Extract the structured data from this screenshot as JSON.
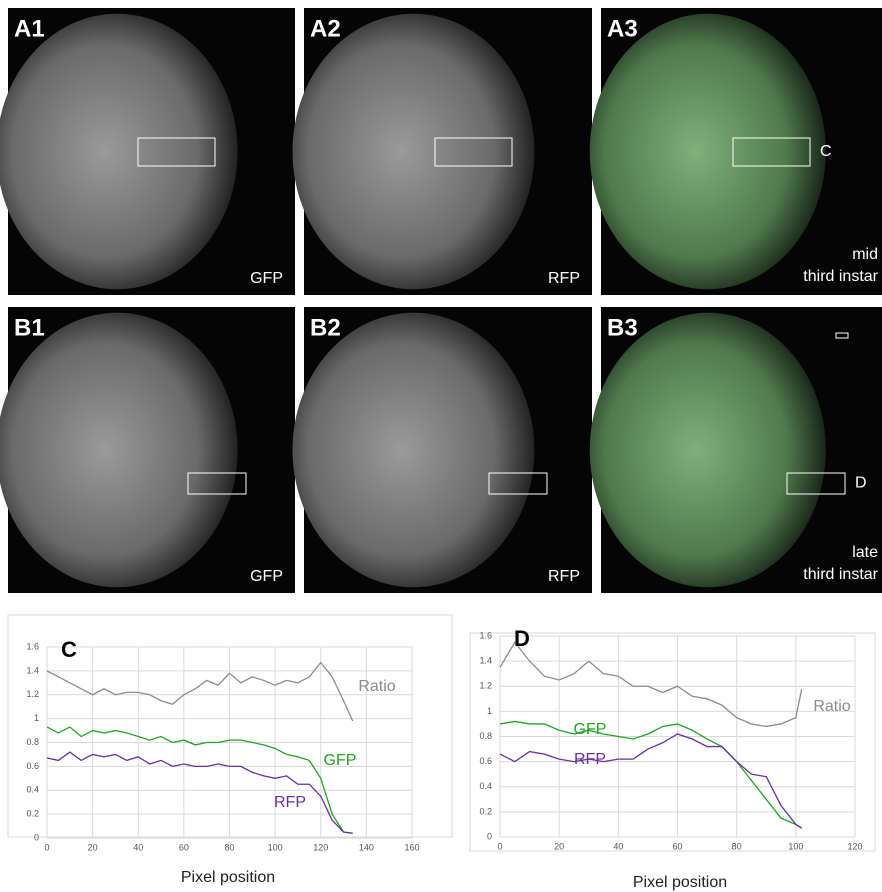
{
  "panels": [
    {
      "label": "A1",
      "channel": "GFP"
    },
    {
      "label": "A2",
      "channel": "RFP"
    },
    {
      "label": "A3",
      "marker": "C",
      "stage": [
        "mid",
        "third instar"
      ]
    },
    {
      "label": "B1",
      "channel": "GFP"
    },
    {
      "label": "B2",
      "channel": "RFP"
    },
    {
      "label": "B3",
      "marker": "D",
      "stage": [
        "late",
        "third instar"
      ]
    }
  ],
  "chart_data": [
    {
      "type": "line",
      "title": "C",
      "x_label": "Pixel position",
      "x": [
        0,
        5,
        10,
        15,
        20,
        25,
        30,
        35,
        40,
        45,
        50,
        55,
        60,
        65,
        70,
        75,
        80,
        85,
        90,
        95,
        100,
        105,
        110,
        115,
        120,
        125,
        130,
        134
      ],
      "xlim": [
        0,
        160
      ],
      "xticks": [
        0,
        20,
        40,
        60,
        80,
        100,
        120,
        140,
        160
      ],
      "ylim": [
        0,
        1.6
      ],
      "yticks": [
        0,
        0.2,
        0.4,
        0.6,
        0.8,
        1,
        1.2,
        1.4,
        1.6
      ],
      "grid": true,
      "series": [
        {
          "name": "Ratio",
          "color": "#8c8c8c",
          "values": [
            1.4,
            1.35,
            1.3,
            1.25,
            1.2,
            1.25,
            1.2,
            1.22,
            1.22,
            1.2,
            1.15,
            1.12,
            1.2,
            1.25,
            1.32,
            1.28,
            1.38,
            1.3,
            1.35,
            1.32,
            1.28,
            1.32,
            1.3,
            1.35,
            1.47,
            1.35,
            1.15,
            0.98
          ]
        },
        {
          "name": "GFP",
          "color": "#1fa51f",
          "values": [
            0.93,
            0.88,
            0.93,
            0.85,
            0.9,
            0.88,
            0.9,
            0.88,
            0.85,
            0.82,
            0.85,
            0.8,
            0.82,
            0.78,
            0.8,
            0.8,
            0.82,
            0.82,
            0.8,
            0.78,
            0.75,
            0.7,
            0.68,
            0.65,
            0.5,
            0.2,
            0.05,
            0.04
          ]
        },
        {
          "name": "RFP",
          "color": "#6a2fa0",
          "values": [
            0.67,
            0.65,
            0.72,
            0.65,
            0.7,
            0.68,
            0.7,
            0.65,
            0.68,
            0.62,
            0.65,
            0.6,
            0.62,
            0.6,
            0.6,
            0.62,
            0.6,
            0.6,
            0.55,
            0.52,
            0.5,
            0.52,
            0.45,
            0.45,
            0.35,
            0.15,
            0.05,
            0.04
          ]
        }
      ]
    },
    {
      "type": "line",
      "title": "D",
      "x_label": "Pixel position",
      "x": [
        0,
        5,
        10,
        15,
        20,
        25,
        30,
        35,
        40,
        45,
        50,
        55,
        60,
        65,
        70,
        75,
        80,
        85,
        90,
        95,
        100,
        102
      ],
      "xlim": [
        0,
        120
      ],
      "xticks": [
        0,
        20,
        40,
        60,
        80,
        100,
        120
      ],
      "ylim": [
        0,
        1.6
      ],
      "yticks": [
        0,
        0.2,
        0.4,
        0.6,
        0.8,
        1,
        1.2,
        1.4,
        1.6
      ],
      "grid": true,
      "series": [
        {
          "name": "Ratio",
          "color": "#8c8c8c",
          "values": [
            1.35,
            1.55,
            1.4,
            1.28,
            1.25,
            1.3,
            1.4,
            1.3,
            1.28,
            1.2,
            1.2,
            1.15,
            1.2,
            1.12,
            1.1,
            1.05,
            0.95,
            0.9,
            0.88,
            0.9,
            0.95,
            1.18
          ]
        },
        {
          "name": "GFP",
          "color": "#1fa51f",
          "values": [
            0.9,
            0.92,
            0.9,
            0.9,
            0.85,
            0.82,
            0.85,
            0.82,
            0.8,
            0.78,
            0.82,
            0.88,
            0.9,
            0.85,
            0.78,
            0.72,
            0.6,
            0.45,
            0.3,
            0.15,
            0.1,
            0.07
          ]
        },
        {
          "name": "RFP",
          "color": "#6a2fa0",
          "values": [
            0.66,
            0.6,
            0.68,
            0.66,
            0.62,
            0.6,
            0.62,
            0.6,
            0.62,
            0.62,
            0.7,
            0.75,
            0.82,
            0.78,
            0.72,
            0.72,
            0.6,
            0.5,
            0.48,
            0.25,
            0.1,
            0.07
          ]
        }
      ]
    }
  ]
}
